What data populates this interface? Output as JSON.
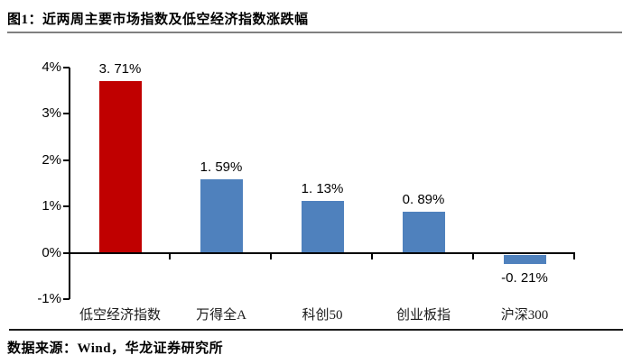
{
  "page": {
    "title": "图1：近两周主要市场指数及低空经济指数涨跌幅",
    "footer": "数据来源：Wind，华龙证券研究所"
  },
  "chart_data": {
    "type": "bar",
    "title": "近两周主要市场指数及低空经济指数涨跌幅",
    "categories": [
      "低空经济指数",
      "万得全A",
      "科创50",
      "创业板指",
      "沪深300"
    ],
    "values": [
      3.71,
      1.59,
      1.13,
      0.89,
      -0.21
    ],
    "value_labels": [
      "3. 71%",
      "1. 59%",
      "1. 13%",
      "0. 89%",
      "-0. 21%"
    ],
    "bar_colors": [
      "#c00000",
      "#4f81bd",
      "#4f81bd",
      "#4f81bd",
      "#4f81bd"
    ],
    "highlight_color": "#c00000",
    "series_color": "#4f81bd",
    "axis_color": "#000000",
    "ylim": [
      -1,
      4
    ],
    "yticks": [
      4,
      3,
      2,
      1,
      0,
      -1
    ],
    "ytick_labels": [
      "4%",
      "3%",
      "2%",
      "1%",
      "0%",
      "-1%"
    ],
    "xlabel": "",
    "ylabel": "",
    "grid": false,
    "legend": false
  }
}
